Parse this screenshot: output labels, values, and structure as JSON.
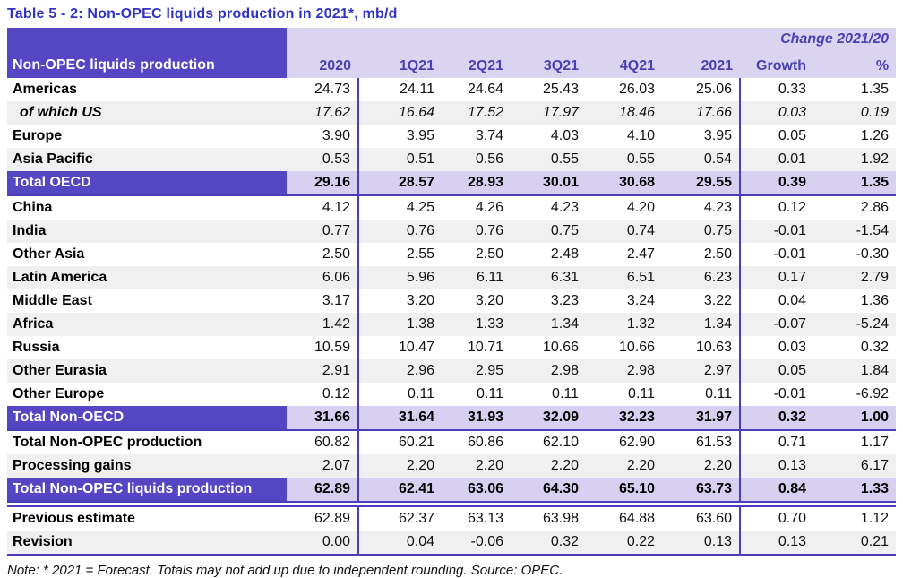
{
  "chart_data": {
    "type": "table",
    "title": "Table 5 - 2: Non-OPEC liquids production in 2021*, mb/d",
    "corner_label": "Non-OPEC liquids production",
    "change_header": "Change 2021/20",
    "columns": [
      "2020",
      "1Q21",
      "2Q21",
      "3Q21",
      "4Q21",
      "2021",
      "Growth",
      "%"
    ],
    "rows": [
      {
        "label": "Americas",
        "variant": "plain",
        "values": [
          "24.73",
          "24.11",
          "24.64",
          "25.43",
          "26.03",
          "25.06",
          "0.33",
          "1.35"
        ]
      },
      {
        "label": "of which US",
        "variant": "italic",
        "values": [
          "17.62",
          "16.64",
          "17.52",
          "17.97",
          "18.46",
          "17.66",
          "0.03",
          "0.19"
        ]
      },
      {
        "label": "Europe",
        "variant": "plain",
        "values": [
          "3.90",
          "3.95",
          "3.74",
          "4.03",
          "4.10",
          "3.95",
          "0.05",
          "1.26"
        ]
      },
      {
        "label": "Asia Pacific",
        "variant": "plain",
        "values": [
          "0.53",
          "0.51",
          "0.56",
          "0.55",
          "0.55",
          "0.54",
          "0.01",
          "1.92"
        ]
      },
      {
        "label": "Total OECD",
        "variant": "total",
        "values": [
          "29.16",
          "28.57",
          "28.93",
          "30.01",
          "30.68",
          "29.55",
          "0.39",
          "1.35"
        ]
      },
      {
        "label": "China",
        "variant": "plain",
        "values": [
          "4.12",
          "4.25",
          "4.26",
          "4.23",
          "4.20",
          "4.23",
          "0.12",
          "2.86"
        ]
      },
      {
        "label": "India",
        "variant": "plain",
        "values": [
          "0.77",
          "0.76",
          "0.76",
          "0.75",
          "0.74",
          "0.75",
          "-0.01",
          "-1.54"
        ]
      },
      {
        "label": "Other Asia",
        "variant": "plain",
        "values": [
          "2.50",
          "2.55",
          "2.50",
          "2.48",
          "2.47",
          "2.50",
          "-0.01",
          "-0.30"
        ]
      },
      {
        "label": "Latin America",
        "variant": "plain",
        "values": [
          "6.06",
          "5.96",
          "6.11",
          "6.31",
          "6.51",
          "6.23",
          "0.17",
          "2.79"
        ]
      },
      {
        "label": "Middle East",
        "variant": "plain",
        "values": [
          "3.17",
          "3.20",
          "3.20",
          "3.23",
          "3.24",
          "3.22",
          "0.04",
          "1.36"
        ]
      },
      {
        "label": "Africa",
        "variant": "plain",
        "values": [
          "1.42",
          "1.38",
          "1.33",
          "1.34",
          "1.32",
          "1.34",
          "-0.07",
          "-5.24"
        ]
      },
      {
        "label": "Russia",
        "variant": "plain",
        "values": [
          "10.59",
          "10.47",
          "10.71",
          "10.66",
          "10.66",
          "10.63",
          "0.03",
          "0.32"
        ]
      },
      {
        "label": "Other Eurasia",
        "variant": "plain",
        "values": [
          "2.91",
          "2.96",
          "2.95",
          "2.98",
          "2.98",
          "2.97",
          "0.05",
          "1.84"
        ]
      },
      {
        "label": "Other Europe",
        "variant": "plain",
        "values": [
          "0.12",
          "0.11",
          "0.11",
          "0.11",
          "0.11",
          "0.11",
          "-0.01",
          "-6.92"
        ]
      },
      {
        "label": "Total Non-OECD",
        "variant": "total",
        "values": [
          "31.66",
          "31.64",
          "31.93",
          "32.09",
          "32.23",
          "31.97",
          "0.32",
          "1.00"
        ]
      },
      {
        "label": "Total Non-OPEC production",
        "variant": "plain",
        "values": [
          "60.82",
          "60.21",
          "60.86",
          "62.10",
          "62.90",
          "61.53",
          "0.71",
          "1.17"
        ]
      },
      {
        "label": "Processing gains",
        "variant": "plain",
        "values": [
          "2.07",
          "2.20",
          "2.20",
          "2.20",
          "2.20",
          "2.20",
          "0.13",
          "6.17"
        ]
      },
      {
        "label": "Total Non-OPEC liquids production",
        "variant": "total",
        "values": [
          "62.89",
          "62.41",
          "63.06",
          "64.30",
          "65.10",
          "63.73",
          "0.84",
          "1.33"
        ]
      },
      {
        "label": "Previous estimate",
        "variant": "plain",
        "new_section": true,
        "values": [
          "62.89",
          "62.37",
          "63.13",
          "63.98",
          "64.88",
          "63.60",
          "0.70",
          "1.12"
        ]
      },
      {
        "label": "Revision",
        "variant": "plain",
        "values": [
          "0.00",
          "0.04",
          "-0.06",
          "0.32",
          "0.22",
          "0.13",
          "0.13",
          "0.21"
        ]
      }
    ],
    "note": "Note: * 2021 = Forecast. Totals may not add up due to independent rounding. Source: OPEC.",
    "layout": {
      "grid": false,
      "striped_rows": true,
      "total_rows_highlighted": true
    },
    "colors": {
      "title_text": "#3232C8",
      "header_dark_purple": "#5546C4",
      "header_light_purple": "#DAD4F1",
      "header_text": "#4B40B2",
      "total_row_bg": "#D7D0F1",
      "stripe_bg": "#F0F0F0",
      "rule_line": "#4C3EB8"
    }
  }
}
